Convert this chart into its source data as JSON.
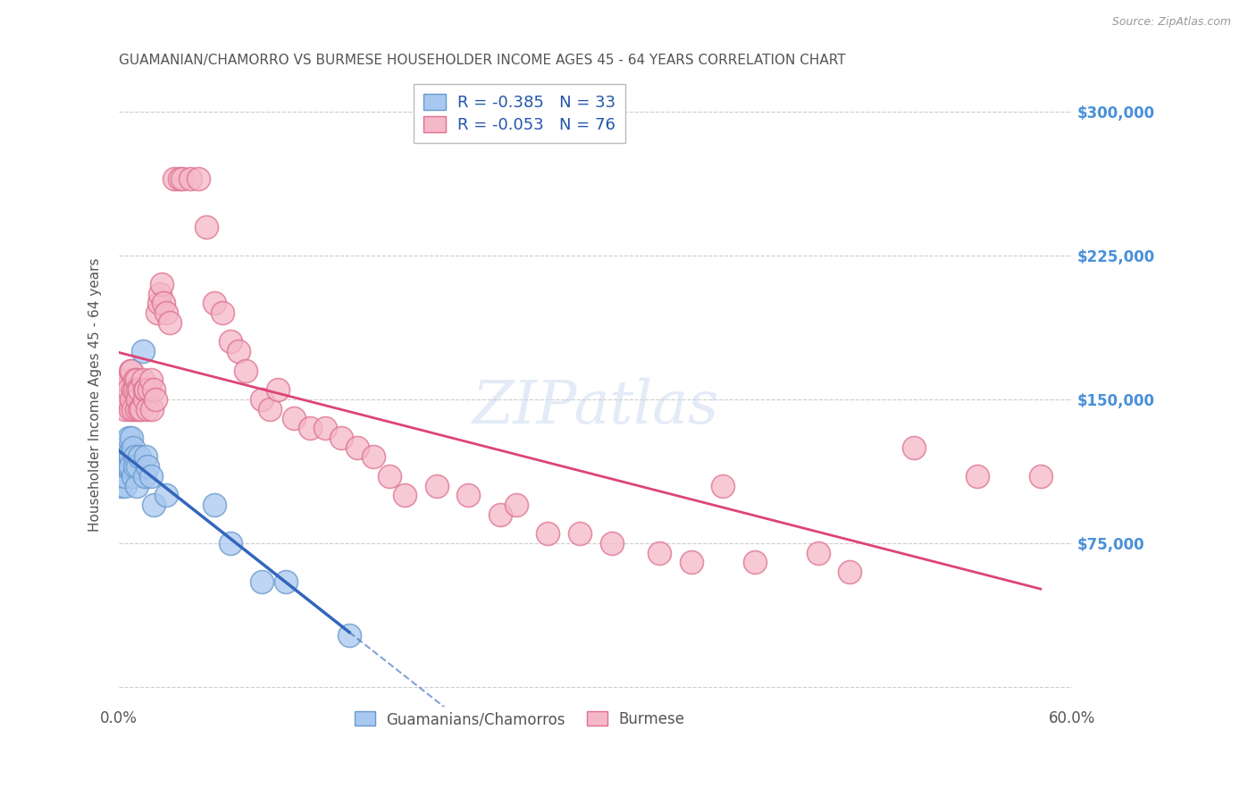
{
  "title": "GUAMANIAN/CHAMORRO VS BURMESE HOUSEHOLDER INCOME AGES 45 - 64 YEARS CORRELATION CHART",
  "source": "Source: ZipAtlas.com",
  "ylabel": "Householder Income Ages 45 - 64 years",
  "xlim": [
    0.0,
    0.6
  ],
  "ylim": [
    -10000,
    315000
  ],
  "yticks": [
    0,
    75000,
    150000,
    225000,
    300000
  ],
  "ytick_labels": [
    "",
    "$75,000",
    "$150,000",
    "$225,000",
    "$300,000"
  ],
  "xticks": [
    0.0,
    0.1,
    0.2,
    0.3,
    0.4,
    0.5,
    0.6
  ],
  "xtick_labels": [
    "0.0%",
    "",
    "",
    "",
    "",
    "",
    "60.0%"
  ],
  "group1_color": "#a8c8f0",
  "group1_edge_color": "#6699cc",
  "group2_color": "#f5b8c8",
  "group2_edge_color": "#dd7090",
  "R1": -0.385,
  "N1": 33,
  "R2": -0.053,
  "N2": 76,
  "legend_label1": "Guamanians/Chamorros",
  "legend_label2": "Burmese",
  "background_color": "#ffffff",
  "grid_color": "#cccccc",
  "title_color": "#555555",
  "axis_label_color": "#555555",
  "ytick_color": "#4a90d9",
  "line_blue": "#3366bb",
  "line_pink": "#dd4477",
  "blue_points_x": [
    0.001,
    0.002,
    0.003,
    0.003,
    0.004,
    0.004,
    0.005,
    0.005,
    0.005,
    0.006,
    0.006,
    0.007,
    0.007,
    0.008,
    0.009,
    0.009,
    0.01,
    0.01,
    0.011,
    0.012,
    0.013,
    0.015,
    0.016,
    0.017,
    0.018,
    0.02,
    0.022,
    0.03,
    0.06,
    0.07,
    0.09,
    0.105,
    0.145
  ],
  "blue_points_y": [
    105000,
    110000,
    115000,
    120000,
    105000,
    110000,
    125000,
    115000,
    120000,
    130000,
    115000,
    120000,
    115000,
    130000,
    125000,
    110000,
    120000,
    115000,
    105000,
    115000,
    120000,
    175000,
    110000,
    120000,
    115000,
    110000,
    95000,
    100000,
    95000,
    75000,
    55000,
    55000,
    27000
  ],
  "pink_points_x": [
    0.002,
    0.003,
    0.004,
    0.005,
    0.005,
    0.006,
    0.007,
    0.007,
    0.008,
    0.008,
    0.009,
    0.009,
    0.01,
    0.01,
    0.011,
    0.011,
    0.012,
    0.012,
    0.013,
    0.013,
    0.014,
    0.015,
    0.016,
    0.016,
    0.017,
    0.018,
    0.019,
    0.02,
    0.021,
    0.022,
    0.023,
    0.024,
    0.025,
    0.026,
    0.027,
    0.028,
    0.03,
    0.032,
    0.035,
    0.038,
    0.04,
    0.045,
    0.05,
    0.055,
    0.06,
    0.065,
    0.07,
    0.075,
    0.08,
    0.09,
    0.095,
    0.1,
    0.11,
    0.12,
    0.13,
    0.14,
    0.15,
    0.16,
    0.17,
    0.18,
    0.2,
    0.22,
    0.24,
    0.25,
    0.27,
    0.29,
    0.31,
    0.34,
    0.36,
    0.38,
    0.4,
    0.44,
    0.46,
    0.5,
    0.54,
    0.58
  ],
  "pink_points_y": [
    155000,
    155000,
    145000,
    150000,
    160000,
    155000,
    145000,
    165000,
    150000,
    165000,
    155000,
    145000,
    160000,
    155000,
    145000,
    160000,
    155000,
    150000,
    145000,
    155000,
    145000,
    160000,
    150000,
    155000,
    155000,
    145000,
    155000,
    160000,
    145000,
    155000,
    150000,
    195000,
    200000,
    205000,
    210000,
    200000,
    195000,
    190000,
    265000,
    265000,
    265000,
    265000,
    265000,
    240000,
    200000,
    195000,
    180000,
    175000,
    165000,
    150000,
    145000,
    155000,
    140000,
    135000,
    135000,
    130000,
    125000,
    120000,
    110000,
    100000,
    105000,
    100000,
    90000,
    95000,
    80000,
    80000,
    75000,
    70000,
    65000,
    105000,
    65000,
    70000,
    60000,
    125000,
    110000,
    110000
  ]
}
